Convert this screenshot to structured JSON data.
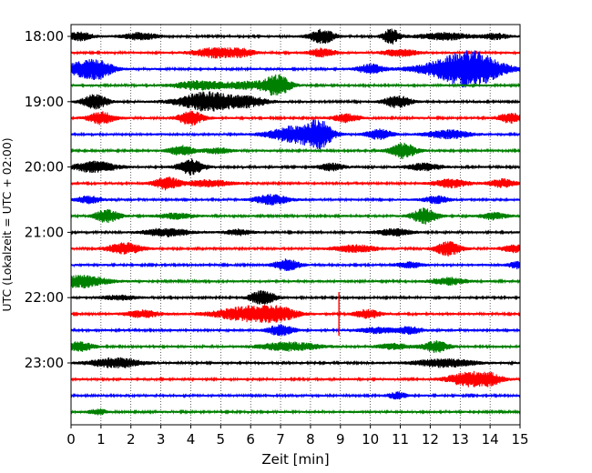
{
  "chart_data": {
    "type": "line",
    "title": "",
    "xlabel": "Zeit  [min]",
    "ylabel": "UTC (Lokalzeit = UTC + 02:00)",
    "xlim": [
      0,
      15
    ],
    "x_ticks": [
      "0",
      "1",
      "2",
      "3",
      "4",
      "5",
      "6",
      "7",
      "8",
      "9",
      "10",
      "11",
      "12",
      "13",
      "14",
      "15"
    ],
    "y_ticks": [
      "18:00",
      "19:00",
      "20:00",
      "21:00",
      "22:00",
      "23:00"
    ],
    "grid": "vertical dotted at each minute",
    "row_interval_minutes": 15,
    "row_color_cycle": [
      "#000000",
      "#ff0000",
      "#0000ff",
      "#008000"
    ],
    "series": [
      {
        "start": "18:00",
        "color": "#000000",
        "bursts": [
          [
            0.3,
            0.3,
            0.6
          ],
          [
            2.3,
            0.4,
            0.5
          ],
          [
            8.4,
            0.3,
            1.0
          ],
          [
            10.7,
            0.2,
            1.1
          ],
          [
            12.5,
            0.6,
            0.5
          ],
          [
            14.2,
            0.3,
            0.4
          ]
        ]
      },
      {
        "start": "18:15",
        "color": "#ff0000",
        "bursts": [
          [
            4.8,
            0.5,
            0.7
          ],
          [
            5.7,
            0.3,
            0.5
          ],
          [
            8.4,
            0.3,
            0.6
          ],
          [
            11.0,
            0.4,
            0.5
          ]
        ]
      },
      {
        "start": "18:30",
        "color": "#0000ff",
        "bursts": [
          [
            0.5,
            0.5,
            1.1
          ],
          [
            1.0,
            0.3,
            0.7
          ],
          [
            10.0,
            0.3,
            0.7
          ],
          [
            13.0,
            0.9,
            1.6
          ],
          [
            13.5,
            0.6,
            1.2
          ]
        ]
      },
      {
        "start": "18:45",
        "color": "#008000",
        "bursts": [
          [
            4.3,
            0.6,
            0.6
          ],
          [
            6.9,
            0.3,
            1.4
          ],
          [
            6.0,
            0.6,
            0.5
          ]
        ]
      },
      {
        "start": "19:00",
        "color": "#000000",
        "bursts": [
          [
            0.8,
            0.3,
            1.0
          ],
          [
            4.6,
            0.7,
            1.4
          ],
          [
            6.0,
            0.4,
            0.6
          ],
          [
            10.9,
            0.3,
            0.9
          ]
        ]
      },
      {
        "start": "19:15",
        "color": "#ff0000",
        "bursts": [
          [
            1.0,
            0.3,
            0.9
          ],
          [
            4.0,
            0.3,
            1.0
          ],
          [
            9.2,
            0.3,
            0.6
          ],
          [
            14.7,
            0.3,
            0.7
          ]
        ]
      },
      {
        "start": "19:30",
        "color": "#0000ff",
        "bursts": [
          [
            7.5,
            0.6,
            1.2
          ],
          [
            8.3,
            0.3,
            1.7
          ],
          [
            10.3,
            0.3,
            0.7
          ],
          [
            12.6,
            0.5,
            0.6
          ]
        ]
      },
      {
        "start": "19:45",
        "color": "#008000",
        "bursts": [
          [
            3.7,
            0.3,
            0.7
          ],
          [
            11.1,
            0.3,
            1.1
          ],
          [
            4.9,
            0.3,
            0.4
          ]
        ]
      },
      {
        "start": "20:00",
        "color": "#000000",
        "bursts": [
          [
            0.8,
            0.5,
            0.8
          ],
          [
            4.0,
            0.3,
            1.1
          ],
          [
            8.7,
            0.3,
            0.5
          ],
          [
            11.8,
            0.4,
            0.5
          ]
        ]
      },
      {
        "start": "20:15",
        "color": "#ff0000",
        "bursts": [
          [
            3.2,
            0.3,
            0.9
          ],
          [
            4.6,
            0.5,
            0.5
          ],
          [
            12.7,
            0.4,
            0.6
          ],
          [
            14.4,
            0.3,
            0.6
          ]
        ]
      },
      {
        "start": "20:30",
        "color": "#0000ff",
        "bursts": [
          [
            0.6,
            0.3,
            0.5
          ],
          [
            6.7,
            0.4,
            0.7
          ],
          [
            12.2,
            0.3,
            0.5
          ]
        ]
      },
      {
        "start": "20:45",
        "color": "#008000",
        "bursts": [
          [
            1.2,
            0.3,
            0.9
          ],
          [
            11.8,
            0.3,
            1.1
          ],
          [
            3.5,
            0.4,
            0.4
          ],
          [
            14.1,
            0.3,
            0.5
          ]
        ]
      },
      {
        "start": "21:00",
        "color": "#000000",
        "bursts": [
          [
            3.2,
            0.5,
            0.6
          ],
          [
            5.6,
            0.3,
            0.4
          ],
          [
            10.8,
            0.4,
            0.5
          ]
        ]
      },
      {
        "start": "21:15",
        "color": "#ff0000",
        "bursts": [
          [
            1.8,
            0.4,
            0.8
          ],
          [
            9.5,
            0.5,
            0.5
          ],
          [
            12.6,
            0.3,
            1.0
          ],
          [
            14.8,
            0.3,
            0.5
          ]
        ]
      },
      {
        "start": "21:30",
        "color": "#0000ff",
        "bursts": [
          [
            7.2,
            0.3,
            0.8
          ],
          [
            11.3,
            0.3,
            0.4
          ],
          [
            14.9,
            0.2,
            0.5
          ]
        ]
      },
      {
        "start": "21:45",
        "color": "#008000",
        "bursts": [
          [
            0.3,
            0.6,
            0.9
          ],
          [
            12.6,
            0.4,
            0.5
          ]
        ]
      },
      {
        "start": "22:00",
        "color": "#000000",
        "bursts": [
          [
            6.4,
            0.3,
            1.0
          ],
          [
            1.6,
            0.4,
            0.3
          ]
        ]
      },
      {
        "start": "22:15",
        "color": "#ff0000",
        "bursts": [
          [
            2.4,
            0.4,
            0.5
          ],
          [
            6.0,
            0.8,
            1.1
          ],
          [
            7.0,
            0.4,
            0.6
          ],
          [
            9.9,
            0.3,
            0.6
          ]
        ]
      },
      {
        "start": "22:30",
        "color": "#0000ff",
        "bursts": [
          [
            7.0,
            0.3,
            0.8
          ],
          [
            10.2,
            0.4,
            0.4
          ],
          [
            11.3,
            0.3,
            0.5
          ]
        ]
      },
      {
        "start": "22:45",
        "color": "#008000",
        "bursts": [
          [
            0.3,
            0.3,
            0.7
          ],
          [
            7.3,
            0.7,
            0.6
          ],
          [
            12.2,
            0.3,
            0.8
          ],
          [
            10.8,
            0.4,
            0.4
          ]
        ]
      },
      {
        "start": "23:00",
        "color": "#000000",
        "bursts": [
          [
            1.5,
            0.6,
            0.7
          ],
          [
            12.5,
            0.7,
            0.6
          ]
        ]
      },
      {
        "start": "23:15",
        "color": "#ff0000",
        "bursts": [
          [
            13.3,
            0.5,
            1.0
          ],
          [
            14.0,
            0.3,
            0.6
          ]
        ]
      },
      {
        "start": "23:30",
        "color": "#0000ff",
        "bursts": [
          [
            10.9,
            0.2,
            0.5
          ]
        ]
      },
      {
        "start": "23:45",
        "color": "#008000",
        "bursts": [
          [
            0.9,
            0.2,
            0.4
          ]
        ]
      }
    ],
    "spikes": [
      {
        "row": "22:15",
        "x": 8.95,
        "amplitude": 3.2
      },
      {
        "row": "18:15",
        "x": 4.6,
        "amplitude": 0.6
      }
    ]
  }
}
